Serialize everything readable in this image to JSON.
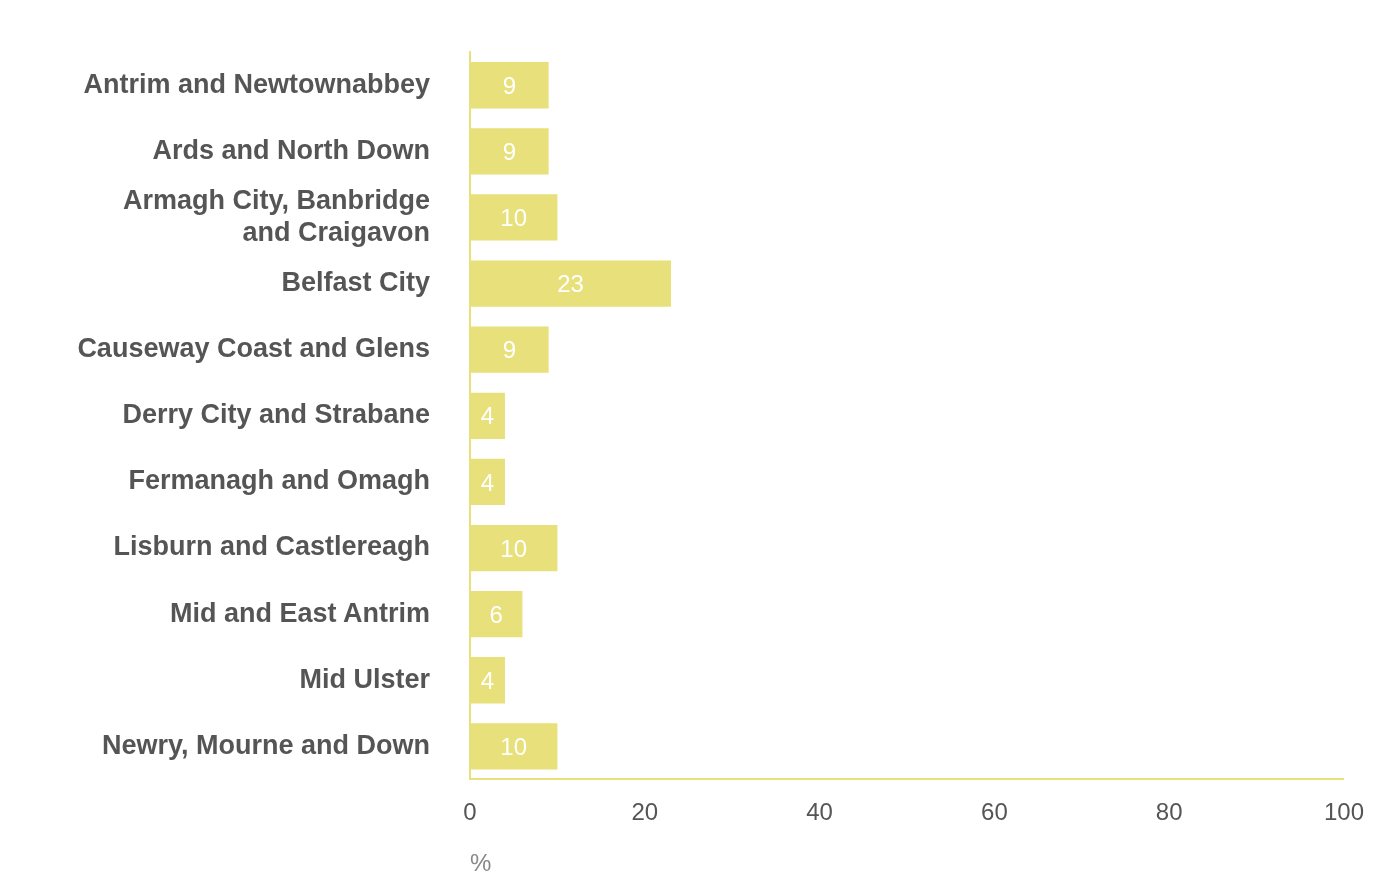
{
  "chart_data": {
    "type": "bar",
    "orientation": "horizontal",
    "xlabel": "%",
    "categories": [
      "Antrim and Newtownabbey",
      "Ards and North Down",
      "Armagh City, Banbridge and Craigavon",
      "Belfast City",
      "Causeway Coast and Glens",
      "Derry City and Strabane",
      "Fermanagh and Omagh",
      "Lisburn and Castlereagh",
      "Mid and East Antrim",
      "Mid Ulster",
      "Newry, Mourne and Down"
    ],
    "values": [
      9,
      9,
      10,
      23,
      9,
      4,
      4,
      10,
      6,
      4,
      10
    ],
    "color": "#e8e07a",
    "data_labels": true,
    "grid": false,
    "legend": false,
    "xlim": [
      0,
      100
    ],
    "xticks": [
      0,
      20,
      40,
      60,
      80,
      100
    ]
  }
}
